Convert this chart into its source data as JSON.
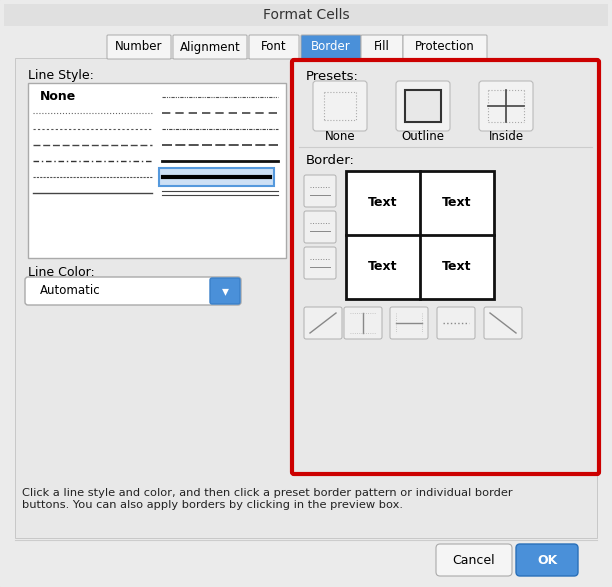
{
  "title": "Format Cells",
  "outer_bg": "#c8c8c8",
  "dialog_bg": "#ebebeb",
  "content_bg": "#e8e8e8",
  "white": "#ffffff",
  "tabs": [
    "Number",
    "Alignment",
    "Font",
    "Border",
    "Fill",
    "Protection"
  ],
  "active_tab": "Border",
  "active_tab_bg": "#4a90d9",
  "active_tab_fg": "#ffffff",
  "inactive_tab_bg": "#f5f5f5",
  "inactive_tab_fg": "#000000",
  "tab_border": "#aaaaaa",
  "line_style_label": "Line Style:",
  "line_color_label": "Line Color:",
  "dropdown_text": "Automatic",
  "presets_label": "Presets:",
  "border_label": "Border:",
  "preset_labels": [
    "None",
    "Outline",
    "Inside"
  ],
  "footer_text": "Click a line style and color, and then click a preset border pattern or individual border\nbuttons. You can also apply borders by clicking in the preview box.",
  "red_box_color": "#cc0000",
  "cancel_btn": "Cancel",
  "ok_btn": "OK",
  "ok_btn_bg": "#4a90d9",
  "gray_btn_border": "#b0b0b0",
  "gray_btn_bg": "#f0f0f0"
}
